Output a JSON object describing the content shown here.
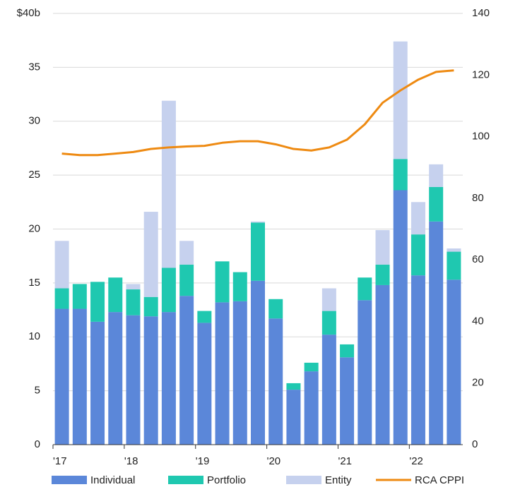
{
  "chart_data": {
    "type": "stacked-bar-line",
    "categories": [
      "'17",
      null,
      null,
      null,
      "'18",
      null,
      null,
      null,
      "'19",
      null,
      null,
      null,
      "'20",
      null,
      null,
      null,
      "'21",
      null,
      null,
      null,
      "'22",
      null,
      null
    ],
    "series": [
      {
        "name": "Individual",
        "color": "#5b87d9",
        "values": [
          12.6,
          12.6,
          11.4,
          12.3,
          12.0,
          11.9,
          12.3,
          13.8,
          11.3,
          13.2,
          13.3,
          15.2,
          11.7,
          5.1,
          6.8,
          10.2,
          8.1,
          13.4,
          14.8,
          23.6,
          15.7,
          20.7,
          15.3
        ]
      },
      {
        "name": "Portfolio",
        "color": "#1fc8b0",
        "values": [
          1.9,
          2.3,
          3.7,
          3.2,
          2.4,
          1.8,
          4.1,
          2.9,
          1.1,
          3.8,
          2.7,
          5.4,
          1.8,
          0.6,
          0.8,
          2.2,
          1.2,
          2.1,
          1.9,
          2.9,
          3.8,
          3.2,
          2.6
        ]
      },
      {
        "name": "Entity",
        "color": "#c6d1ee",
        "values": [
          4.4,
          0,
          0,
          0,
          0.5,
          7.9,
          15.5,
          2.2,
          0,
          0,
          0,
          0.1,
          0,
          0,
          0,
          2.1,
          0,
          0,
          3.2,
          10.9,
          3.0,
          2.1,
          0.3
        ]
      },
      {
        "name": "RCA CPPI",
        "color": "#ee8a12",
        "axis": "y2",
        "values": [
          94.5,
          94,
          94,
          94.5,
          95,
          96,
          96.5,
          96.8,
          97,
          98,
          98.5,
          98.5,
          97.5,
          96,
          95.5,
          96.5,
          99,
          104,
          111,
          115,
          118.5,
          121,
          121.5
        ]
      }
    ],
    "ylim": [
      0,
      40
    ],
    "yticks": [
      0,
      5,
      10,
      15,
      20,
      25,
      30,
      35,
      {
        "value": 40,
        "label": "$40b"
      }
    ],
    "y2lim": [
      0,
      140
    ],
    "y2ticks": [
      0,
      20,
      40,
      60,
      80,
      100,
      120,
      140
    ],
    "grid": true,
    "legend": "bottom"
  }
}
